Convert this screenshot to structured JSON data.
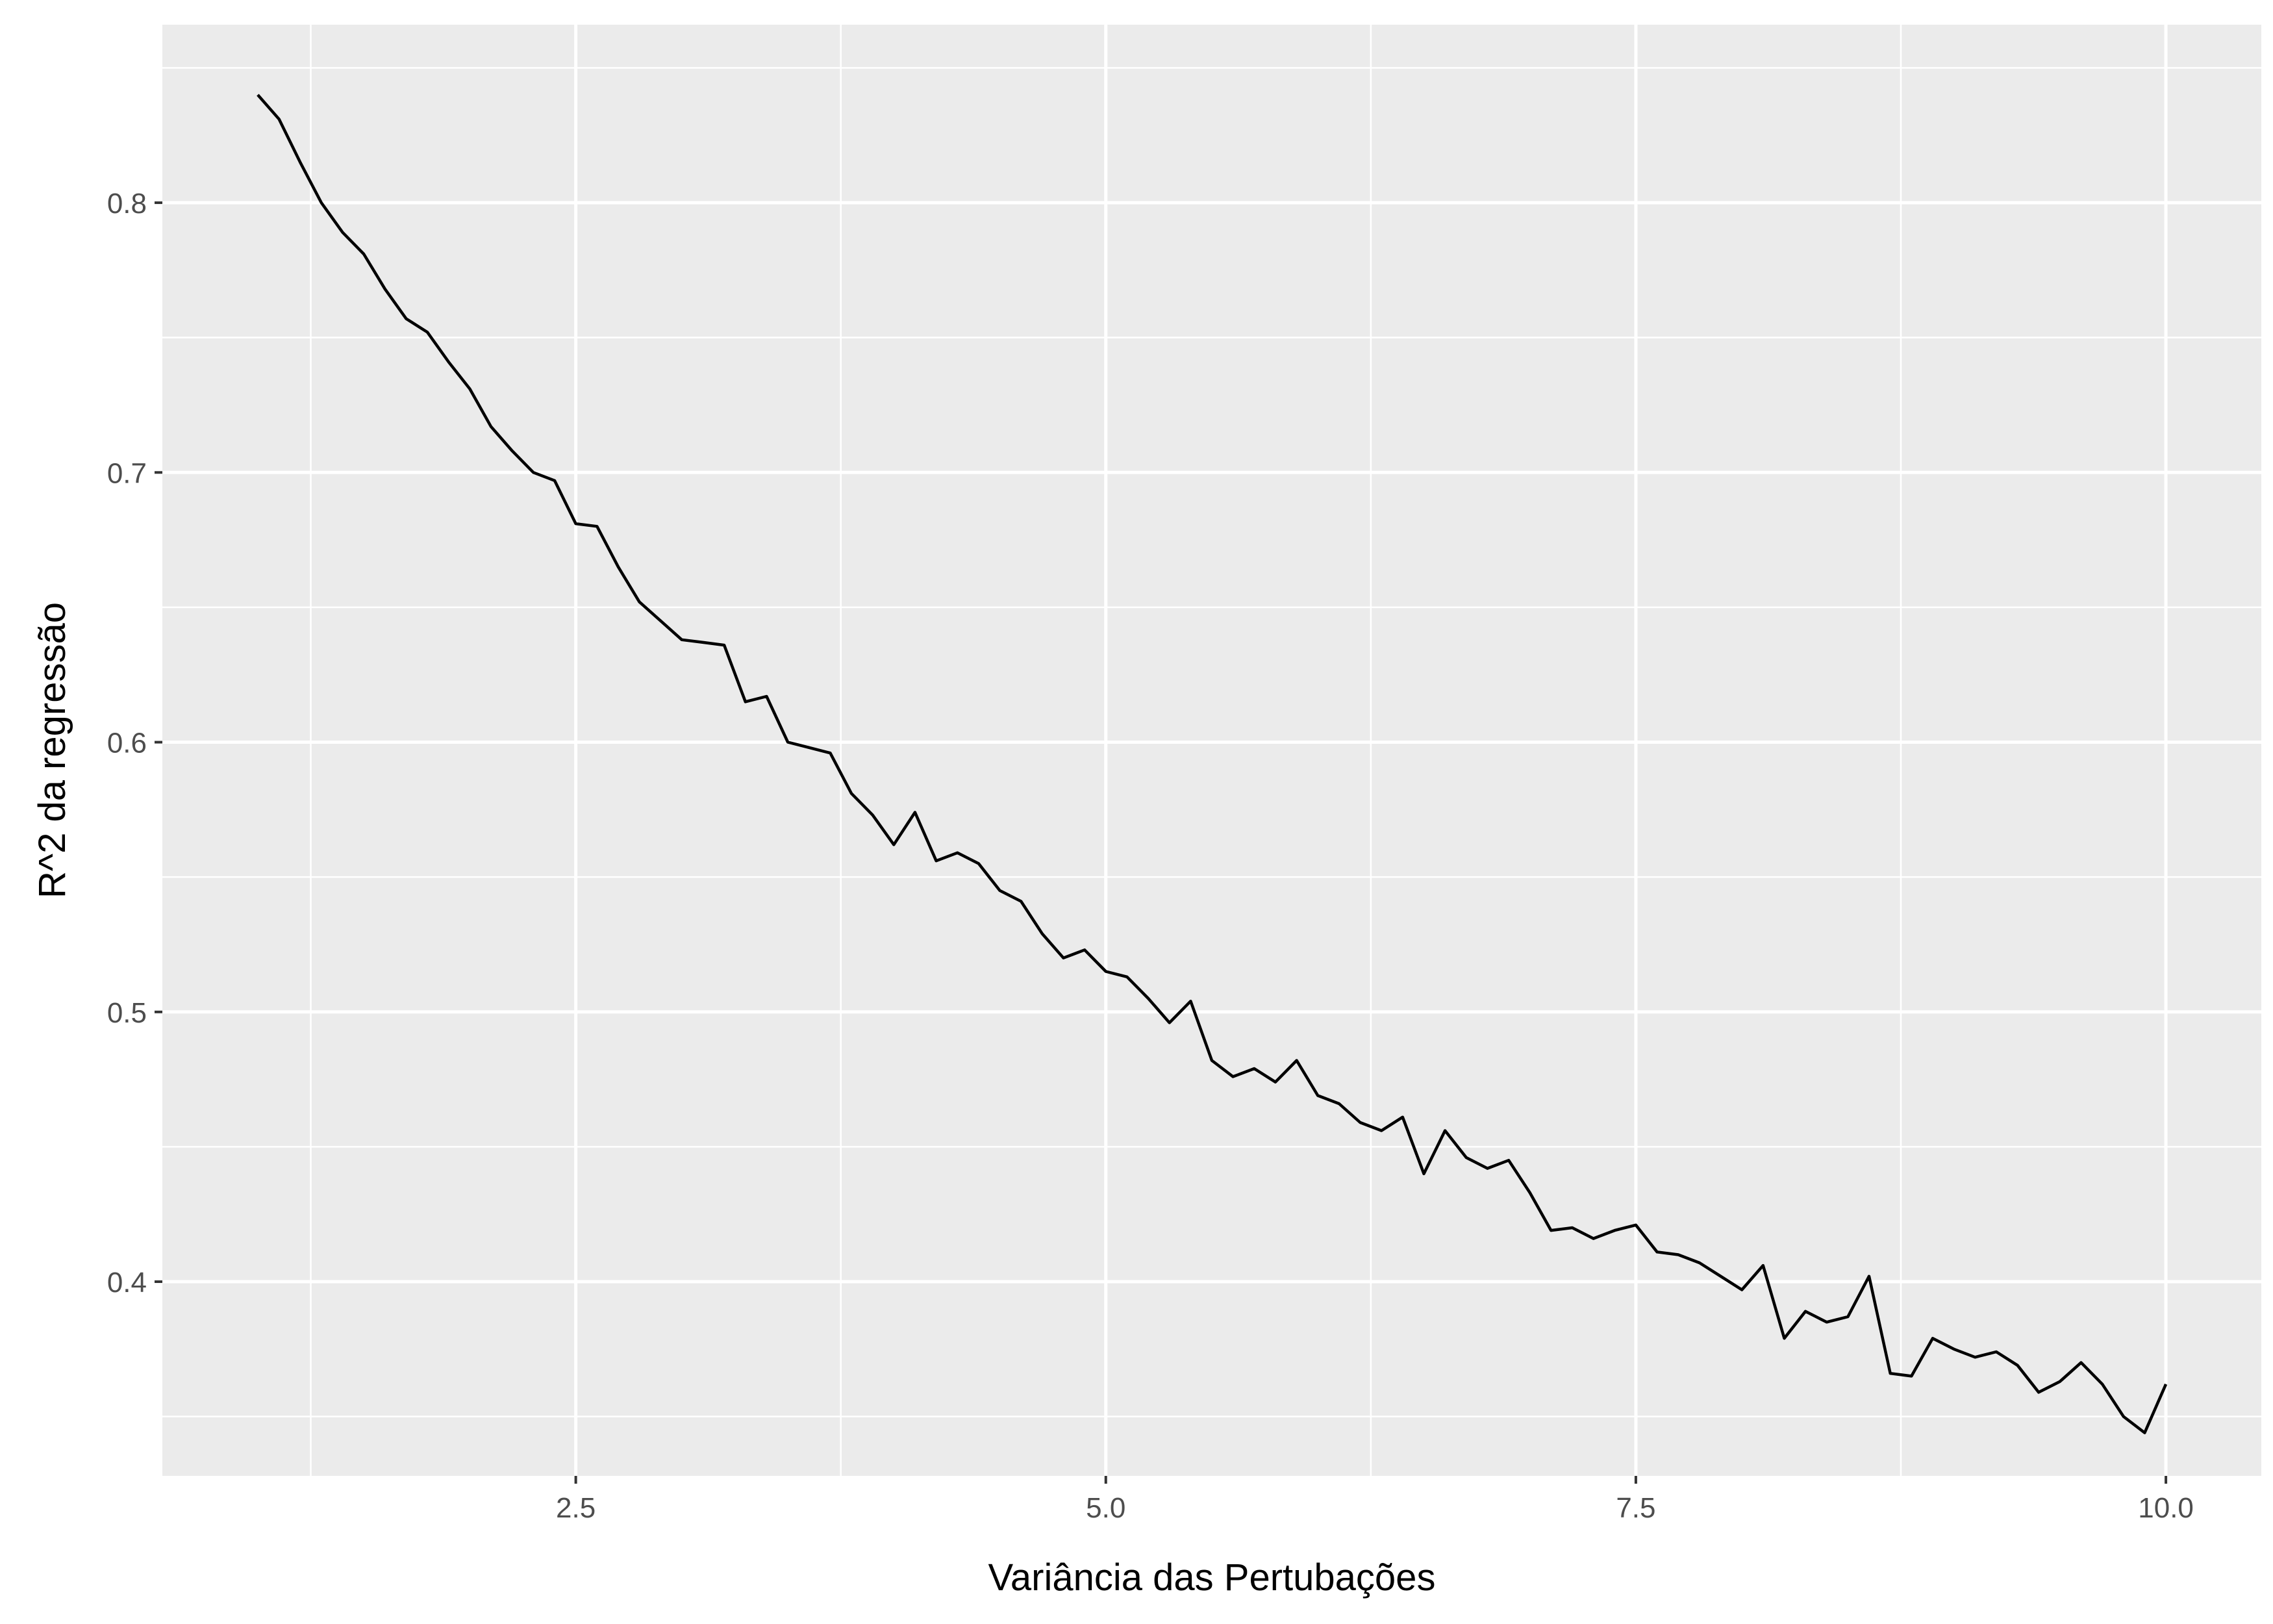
{
  "chart_data": {
    "type": "line",
    "title": "",
    "xlabel": "Variância das Pertubações",
    "ylabel": "R^2 da regressão",
    "xlim": [
      0.55,
      10.45
    ],
    "ylim": [
      0.328,
      0.866
    ],
    "x_ticks": [
      2.5,
      5.0,
      7.5,
      10.0
    ],
    "x_tick_labels": [
      "2.5",
      "5.0",
      "7.5",
      "10.0"
    ],
    "y_ticks": [
      0.4,
      0.5,
      0.6,
      0.7,
      0.8
    ],
    "y_tick_labels": [
      "0.4",
      "0.5",
      "0.6",
      "0.7",
      "0.8"
    ],
    "grid": true,
    "legend": "none",
    "colors": {
      "panel": "#ebebeb",
      "grid": "#ffffff",
      "line": "#000000"
    },
    "series": [
      {
        "x": [
          1.0,
          1.1,
          1.2,
          1.3,
          1.4,
          1.5,
          1.6,
          1.7,
          1.8,
          1.9,
          2.0,
          2.1,
          2.2,
          2.3,
          2.4,
          2.5,
          2.6,
          2.7,
          2.8,
          2.9,
          3.0,
          3.1,
          3.2,
          3.3,
          3.4,
          3.5,
          3.6,
          3.7,
          3.8,
          3.9,
          4.0,
          4.1,
          4.2,
          4.3,
          4.4,
          4.5,
          4.6,
          4.7,
          4.8,
          4.9,
          5.0,
          5.1,
          5.2,
          5.3,
          5.4,
          5.5,
          5.6,
          5.7,
          5.8,
          5.9,
          6.0,
          6.1,
          6.2,
          6.3,
          6.4,
          6.5,
          6.6,
          6.7,
          6.8,
          6.9,
          7.0,
          7.1,
          7.2,
          7.3,
          7.4,
          7.5,
          7.6,
          7.7,
          7.8,
          7.9,
          8.0,
          8.1,
          8.2,
          8.3,
          8.4,
          8.5,
          8.6,
          8.7,
          8.8,
          8.9,
          9.0,
          9.1,
          9.2,
          9.3,
          9.4,
          9.5,
          9.6,
          9.7,
          9.8,
          9.9,
          10.0
        ],
        "y": [
          0.84,
          0.831,
          0.815,
          0.8,
          0.789,
          0.781,
          0.768,
          0.757,
          0.752,
          0.741,
          0.731,
          0.717,
          0.708,
          0.7,
          0.697,
          0.681,
          0.68,
          0.665,
          0.652,
          0.645,
          0.638,
          0.637,
          0.636,
          0.615,
          0.617,
          0.6,
          0.598,
          0.596,
          0.581,
          0.573,
          0.562,
          0.574,
          0.556,
          0.559,
          0.555,
          0.545,
          0.541,
          0.529,
          0.52,
          0.523,
          0.515,
          0.513,
          0.505,
          0.496,
          0.504,
          0.482,
          0.476,
          0.479,
          0.474,
          0.482,
          0.469,
          0.466,
          0.459,
          0.456,
          0.461,
          0.44,
          0.456,
          0.446,
          0.442,
          0.445,
          0.433,
          0.419,
          0.42,
          0.416,
          0.419,
          0.421,
          0.411,
          0.41,
          0.407,
          0.402,
          0.397,
          0.406,
          0.379,
          0.389,
          0.385,
          0.387,
          0.402,
          0.366,
          0.365,
          0.379,
          0.375,
          0.372,
          0.374,
          0.369,
          0.359,
          0.363,
          0.37,
          0.362,
          0.35,
          0.344,
          0.362
        ]
      }
    ]
  }
}
